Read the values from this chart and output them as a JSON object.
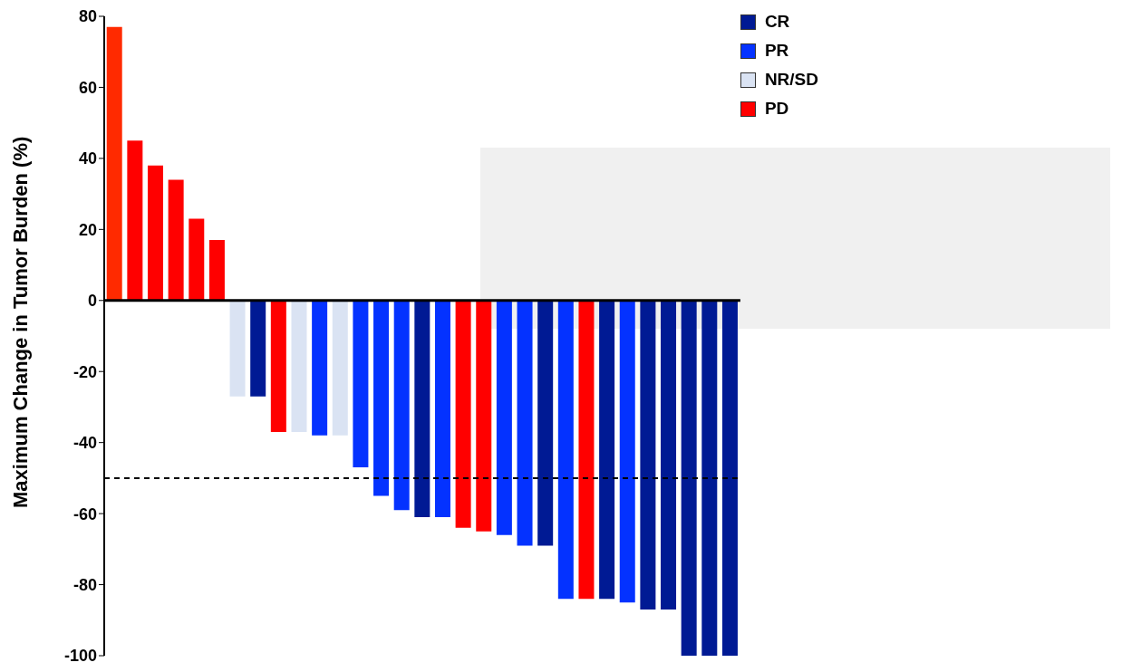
{
  "chart_data": {
    "type": "bar",
    "ylabel": "Maximum Change in Tumor Burden (%)",
    "categories": [
      null,
      null,
      null,
      null,
      null,
      null,
      null,
      null,
      null,
      null,
      null,
      null,
      null,
      null,
      null,
      null,
      null,
      null,
      null,
      null,
      null,
      null,
      null,
      null,
      null,
      null,
      null,
      null,
      null,
      null,
      null
    ],
    "stacked": true,
    "series": [
      {
        "name": "CR",
        "color": "#001a94",
        "values": [
          null,
          null,
          null,
          null,
          null,
          null,
          null,
          -27,
          null,
          null,
          null,
          null,
          null,
          null,
          null,
          -61,
          null,
          null,
          null,
          null,
          null,
          -69,
          null,
          null,
          -84,
          null,
          -87,
          -87,
          -100,
          -100,
          -100
        ]
      },
      {
        "name": "PR",
        "color": "#0432ff",
        "values": [
          null,
          null,
          null,
          null,
          null,
          null,
          null,
          null,
          null,
          null,
          -38,
          null,
          -47,
          -55,
          -59,
          null,
          -61,
          null,
          null,
          -66,
          -69,
          null,
          -84,
          null,
          null,
          -85,
          null,
          null,
          null,
          null,
          null
        ]
      },
      {
        "name": "NR/SD",
        "color": "#dae3f3",
        "values": [
          null,
          null,
          null,
          null,
          null,
          null,
          -27,
          null,
          null,
          -37,
          null,
          -38,
          null,
          null,
          null,
          null,
          null,
          null,
          null,
          null,
          null,
          null,
          null,
          null,
          null,
          null,
          null,
          null,
          null,
          null,
          null
        ]
      },
      {
        "name": "PD",
        "color": "#ff0000",
        "colors": [
          "#ff2a00",
          "#ff0000",
          "#ff0000",
          "#ff0000",
          "#ff0000",
          "#ff0000",
          null,
          null,
          "#ff0000",
          null,
          null,
          null,
          null,
          null,
          null,
          null,
          null,
          "#ff0000",
          "#ff0000",
          null,
          null,
          null,
          null,
          "#ff0000",
          null,
          null,
          null,
          null,
          null,
          null,
          null
        ],
        "values": [
          77,
          45,
          38,
          34,
          23,
          17,
          null,
          null,
          -37,
          null,
          null,
          null,
          null,
          null,
          null,
          null,
          null,
          -64,
          -65,
          null,
          null,
          null,
          null,
          -84,
          null,
          null,
          null,
          null,
          null,
          null,
          null
        ]
      }
    ],
    "ylim": [
      -100,
      80
    ],
    "yticks": [
      -100,
      -80,
      -60,
      -40,
      -20,
      0,
      20,
      40,
      60,
      80
    ],
    "ref_lines": [
      {
        "axis": "y",
        "value": -50,
        "color": "#000000",
        "line_style": "dashed"
      }
    ],
    "legend": "top right"
  }
}
